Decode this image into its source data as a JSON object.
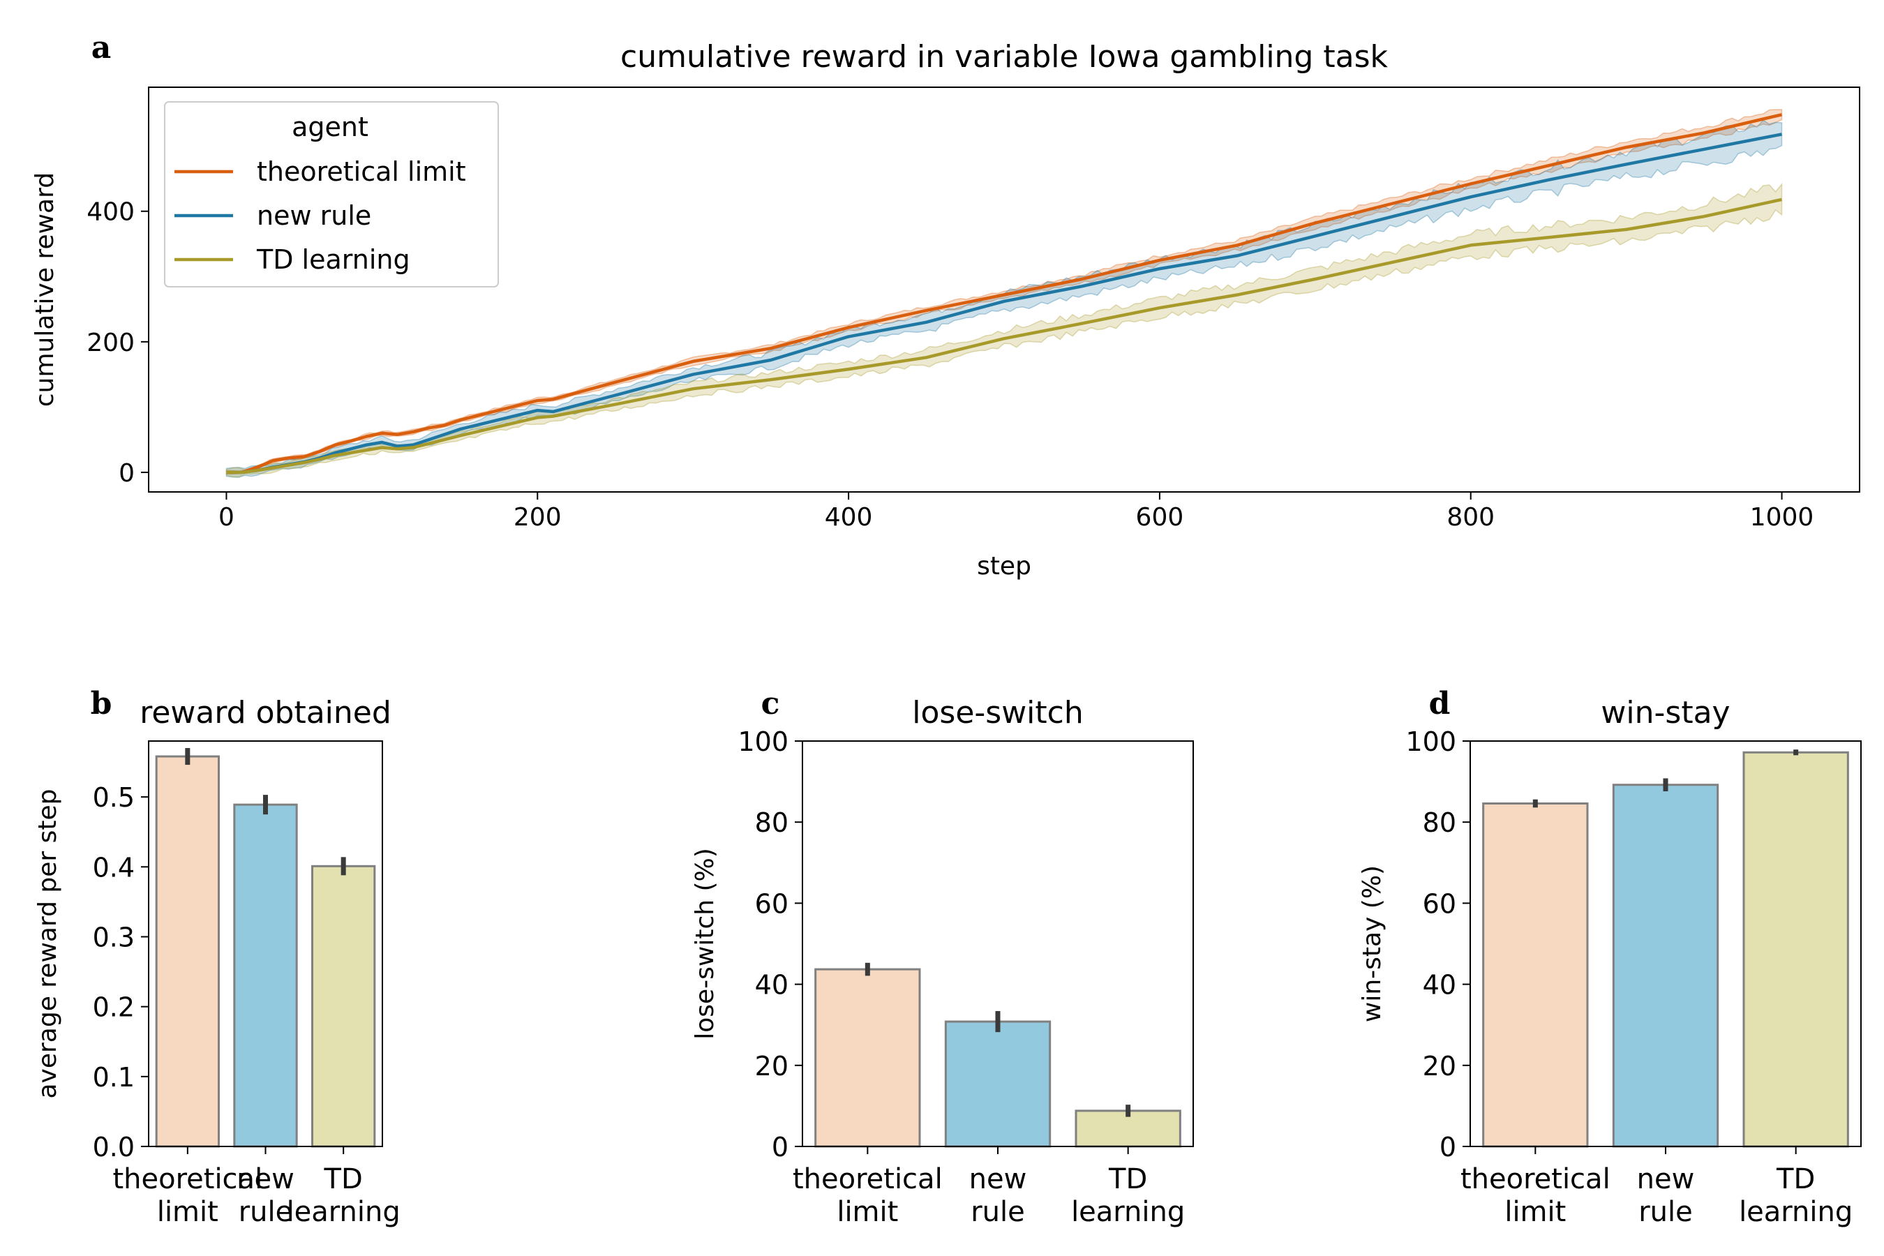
{
  "colors": {
    "theoretical limit": "#d95f0e",
    "new rule": "#1f78a4",
    "TD learning": "#a89a2a",
    "bar_theoretical": "#f6d9c0",
    "bar_new": "#92c9df",
    "bar_td": "#e4e1b0",
    "bar_edge": "#808080",
    "errbar": "#3a3a3a"
  },
  "chart_data": [
    {
      "panel": "a",
      "type": "line",
      "title": "cumulative reward in variable Iowa gambling task",
      "xlabel": "step",
      "ylabel": "cumulative reward",
      "xlim": [
        -50,
        1050
      ],
      "ylim": [
        -30,
        590
      ],
      "xticks": [
        0,
        200,
        400,
        600,
        800,
        1000
      ],
      "yticks": [
        0,
        200,
        400
      ],
      "grid": false,
      "legend": {
        "title": "agent",
        "placement": "top-left"
      },
      "x": [
        0,
        10,
        20,
        30,
        40,
        50,
        60,
        70,
        80,
        90,
        100,
        110,
        120,
        130,
        140,
        150,
        200,
        210,
        250,
        300,
        350,
        400,
        450,
        500,
        550,
        600,
        650,
        700,
        750,
        800,
        850,
        900,
        950,
        1000
      ],
      "series": [
        {
          "name": "theoretical limit",
          "values": [
            0,
            0,
            8,
            18,
            22,
            24,
            32,
            42,
            48,
            55,
            60,
            58,
            62,
            68,
            72,
            80,
            110,
            112,
            138,
            170,
            190,
            222,
            248,
            272,
            296,
            325,
            348,
            382,
            412,
            442,
            470,
            498,
            520,
            548
          ],
          "band": 10
        },
        {
          "name": "new rule",
          "values": [
            0,
            0,
            3,
            8,
            12,
            16,
            22,
            30,
            36,
            42,
            46,
            40,
            42,
            50,
            58,
            66,
            95,
            93,
            118,
            150,
            172,
            208,
            230,
            262,
            285,
            312,
            332,
            362,
            392,
            422,
            448,
            472,
            495,
            518
          ],
          "band": 22
        },
        {
          "name": "TD learning",
          "values": [
            0,
            0,
            3,
            7,
            11,
            15,
            20,
            26,
            30,
            34,
            38,
            36,
            38,
            44,
            50,
            56,
            84,
            86,
            104,
            128,
            142,
            158,
            176,
            205,
            228,
            252,
            272,
            296,
            322,
            348,
            360,
            372,
            392,
            418
          ],
          "band": 20
        }
      ]
    },
    {
      "panel": "b",
      "type": "bar",
      "title": "reward obtained",
      "ylabel": "average reward per step",
      "categories": [
        [
          "theoretical",
          "limit"
        ],
        [
          "new",
          "rule"
        ],
        [
          "TD",
          "learning"
        ]
      ],
      "values": [
        0.558,
        0.489,
        0.401
      ],
      "errors": [
        0.012,
        0.014,
        0.013
      ],
      "ylim": [
        0,
        0.58
      ],
      "yticks": [
        0.0,
        0.1,
        0.2,
        0.3,
        0.4,
        0.5
      ],
      "ytick_labels": [
        "0.0",
        "0.1",
        "0.2",
        "0.3",
        "0.4",
        "0.5"
      ]
    },
    {
      "panel": "c",
      "type": "bar",
      "title": "lose-switch",
      "ylabel": "lose-switch (%)",
      "categories": [
        [
          "theoretical",
          "limit"
        ],
        [
          "new",
          "rule"
        ],
        [
          "TD",
          "learning"
        ]
      ],
      "values": [
        43.7,
        30.8,
        8.8
      ],
      "errors": [
        1.6,
        2.6,
        1.5
      ],
      "ylim": [
        0,
        100
      ],
      "yticks": [
        0,
        20,
        40,
        60,
        80,
        100
      ],
      "ytick_labels": [
        "0",
        "20",
        "40",
        "60",
        "80",
        "100"
      ]
    },
    {
      "panel": "d",
      "type": "bar",
      "title": "win-stay",
      "ylabel": "win-stay (%)",
      "categories": [
        [
          "theoretical",
          "limit"
        ],
        [
          "new",
          "rule"
        ],
        [
          "TD",
          "learning"
        ]
      ],
      "values": [
        84.6,
        89.2,
        97.2
      ],
      "errors": [
        1.0,
        1.6,
        0.7
      ],
      "ylim": [
        0,
        100
      ],
      "yticks": [
        0,
        20,
        40,
        60,
        80,
        100
      ],
      "ytick_labels": [
        "0",
        "20",
        "40",
        "60",
        "80",
        "100"
      ]
    }
  ]
}
